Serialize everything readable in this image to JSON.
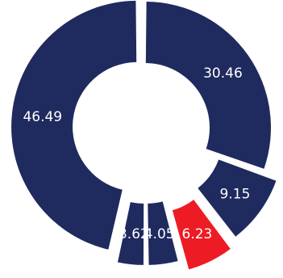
{
  "chart_data": {
    "type": "pie",
    "style": "exploded donut",
    "title": "",
    "slices": [
      {
        "label": "30.46",
        "value": 30.46,
        "color": "#1f2a5e"
      },
      {
        "label": "9.15",
        "value": 9.15,
        "color": "#1f2a5e"
      },
      {
        "label": "6.23",
        "value": 6.23,
        "color": "#ed1c24"
      },
      {
        "label": "4.05",
        "value": 4.05,
        "color": "#1f2a5e"
      },
      {
        "label": "3.62",
        "value": 3.62,
        "color": "#1f2a5e"
      },
      {
        "label": "46.49",
        "value": 46.49,
        "color": "#1f2a5e"
      }
    ],
    "legend": "none"
  }
}
